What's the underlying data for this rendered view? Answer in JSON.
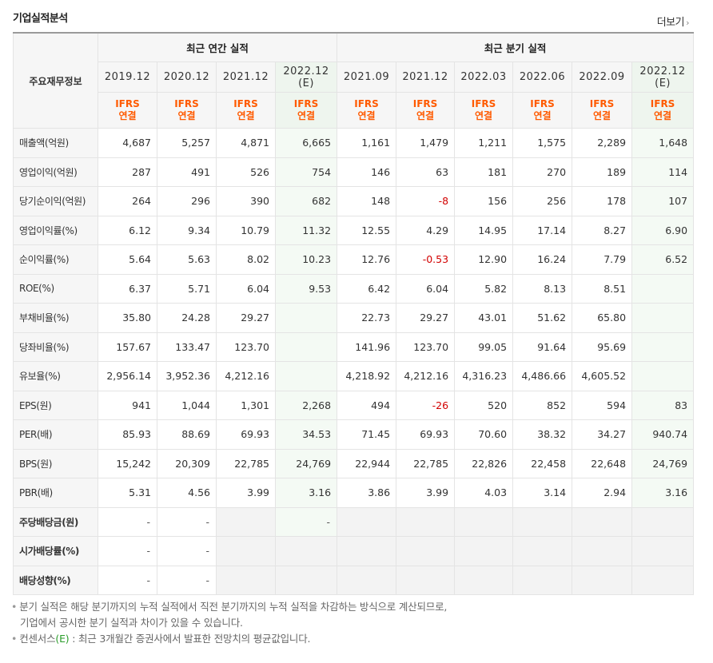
{
  "section_title": "기업실적분석",
  "more_link": "더보기",
  "header": {
    "row_title": "주요재무정보",
    "annual_group": "최근 연간 실적",
    "quarterly_group": "최근 분기 실적",
    "annual_periods": [
      {
        "line1": "2019.12",
        "line2": ""
      },
      {
        "line1": "2020.12",
        "line2": ""
      },
      {
        "line1": "2021.12",
        "line2": ""
      },
      {
        "line1": "2022.12",
        "line2": "(E)"
      }
    ],
    "quarterly_periods": [
      {
        "line1": "2021.09",
        "line2": ""
      },
      {
        "line1": "2021.12",
        "line2": ""
      },
      {
        "line1": "2022.03",
        "line2": ""
      },
      {
        "line1": "2022.06",
        "line2": ""
      },
      {
        "line1": "2022.09",
        "line2": ""
      },
      {
        "line1": "2022.12",
        "line2": "(E)"
      }
    ],
    "basis_line1": "IFRS",
    "basis_line2": "연결"
  },
  "rows": [
    {
      "label": "매출액(억원)",
      "values": [
        "4,687",
        "5,257",
        "4,871",
        "6,665",
        "1,161",
        "1,479",
        "1,211",
        "1,575",
        "2,289",
        "1,648"
      ]
    },
    {
      "label": "영업이익(억원)",
      "values": [
        "287",
        "491",
        "526",
        "754",
        "146",
        "63",
        "181",
        "270",
        "189",
        "114"
      ]
    },
    {
      "label": "당기순이익(억원)",
      "values": [
        "264",
        "296",
        "390",
        "682",
        "148",
        "-8",
        "156",
        "256",
        "178",
        "107"
      ]
    },
    {
      "label": "영업이익률(%)",
      "values": [
        "6.12",
        "9.34",
        "10.79",
        "11.32",
        "12.55",
        "4.29",
        "14.95",
        "17.14",
        "8.27",
        "6.90"
      ]
    },
    {
      "label": "순이익률(%)",
      "values": [
        "5.64",
        "5.63",
        "8.02",
        "10.23",
        "12.76",
        "-0.53",
        "12.90",
        "16.24",
        "7.79",
        "6.52"
      ]
    },
    {
      "label": "ROE(%)",
      "values": [
        "6.37",
        "5.71",
        "6.04",
        "9.53",
        "6.42",
        "6.04",
        "5.82",
        "8.13",
        "8.51",
        ""
      ]
    },
    {
      "label": "부채비율(%)",
      "values": [
        "35.80",
        "24.28",
        "29.27",
        "",
        "22.73",
        "29.27",
        "43.01",
        "51.62",
        "65.80",
        ""
      ]
    },
    {
      "label": "당좌비율(%)",
      "values": [
        "157.67",
        "133.47",
        "123.70",
        "",
        "141.96",
        "123.70",
        "99.05",
        "91.64",
        "95.69",
        ""
      ]
    },
    {
      "label": "유보율(%)",
      "values": [
        "2,956.14",
        "3,952.36",
        "4,212.16",
        "",
        "4,218.92",
        "4,212.16",
        "4,316.23",
        "4,486.66",
        "4,605.52",
        ""
      ]
    },
    {
      "label": "EPS(원)",
      "values": [
        "941",
        "1,044",
        "1,301",
        "2,268",
        "494",
        "-26",
        "520",
        "852",
        "594",
        "83"
      ]
    },
    {
      "label": "PER(배)",
      "values": [
        "85.93",
        "88.69",
        "69.93",
        "34.53",
        "71.45",
        "69.93",
        "70.60",
        "38.32",
        "34.27",
        "940.74"
      ]
    },
    {
      "label": "BPS(원)",
      "values": [
        "15,242",
        "20,309",
        "22,785",
        "24,769",
        "22,944",
        "22,785",
        "22,826",
        "22,458",
        "22,648",
        "24,769"
      ]
    },
    {
      "label": "PBR(배)",
      "values": [
        "5.31",
        "4.56",
        "3.99",
        "3.16",
        "3.86",
        "3.99",
        "4.03",
        "3.14",
        "2.94",
        "3.16"
      ]
    },
    {
      "label": "주당배당금(원)",
      "values": [
        "-",
        "-",
        "",
        "-",
        "",
        "",
        "",
        "",
        "",
        ""
      ]
    },
    {
      "label": "시가배당률(%)",
      "values": [
        "-",
        "-",
        "",
        "",
        "",
        "",
        "",
        "",
        "",
        ""
      ]
    },
    {
      "label": "배당성향(%)",
      "values": [
        "-",
        "-",
        "",
        "",
        "",
        "",
        "",
        "",
        "",
        ""
      ]
    }
  ],
  "notes": {
    "note1_line1": "분기 실적은 해당 분기까지의 누적 실적에서 직전 분기까지의 누적 실적을 차감하는 방식으로 계산되므로,",
    "note1_line2": "기업에서 공시한 분기 실적과 차이가 있을 수 있습니다.",
    "note2_prefix": "컨센서스",
    "note2_mark": "(E)",
    "note2_suffix": " : 최근 3개월간 증권사에서 발표한 전망치의 평균값입니다."
  },
  "colors": {
    "ifrs": "#ff5a00",
    "negative": "#d20000",
    "estimate_bg": "#f4faf4",
    "consensus_mark": "#2a9d2a"
  }
}
